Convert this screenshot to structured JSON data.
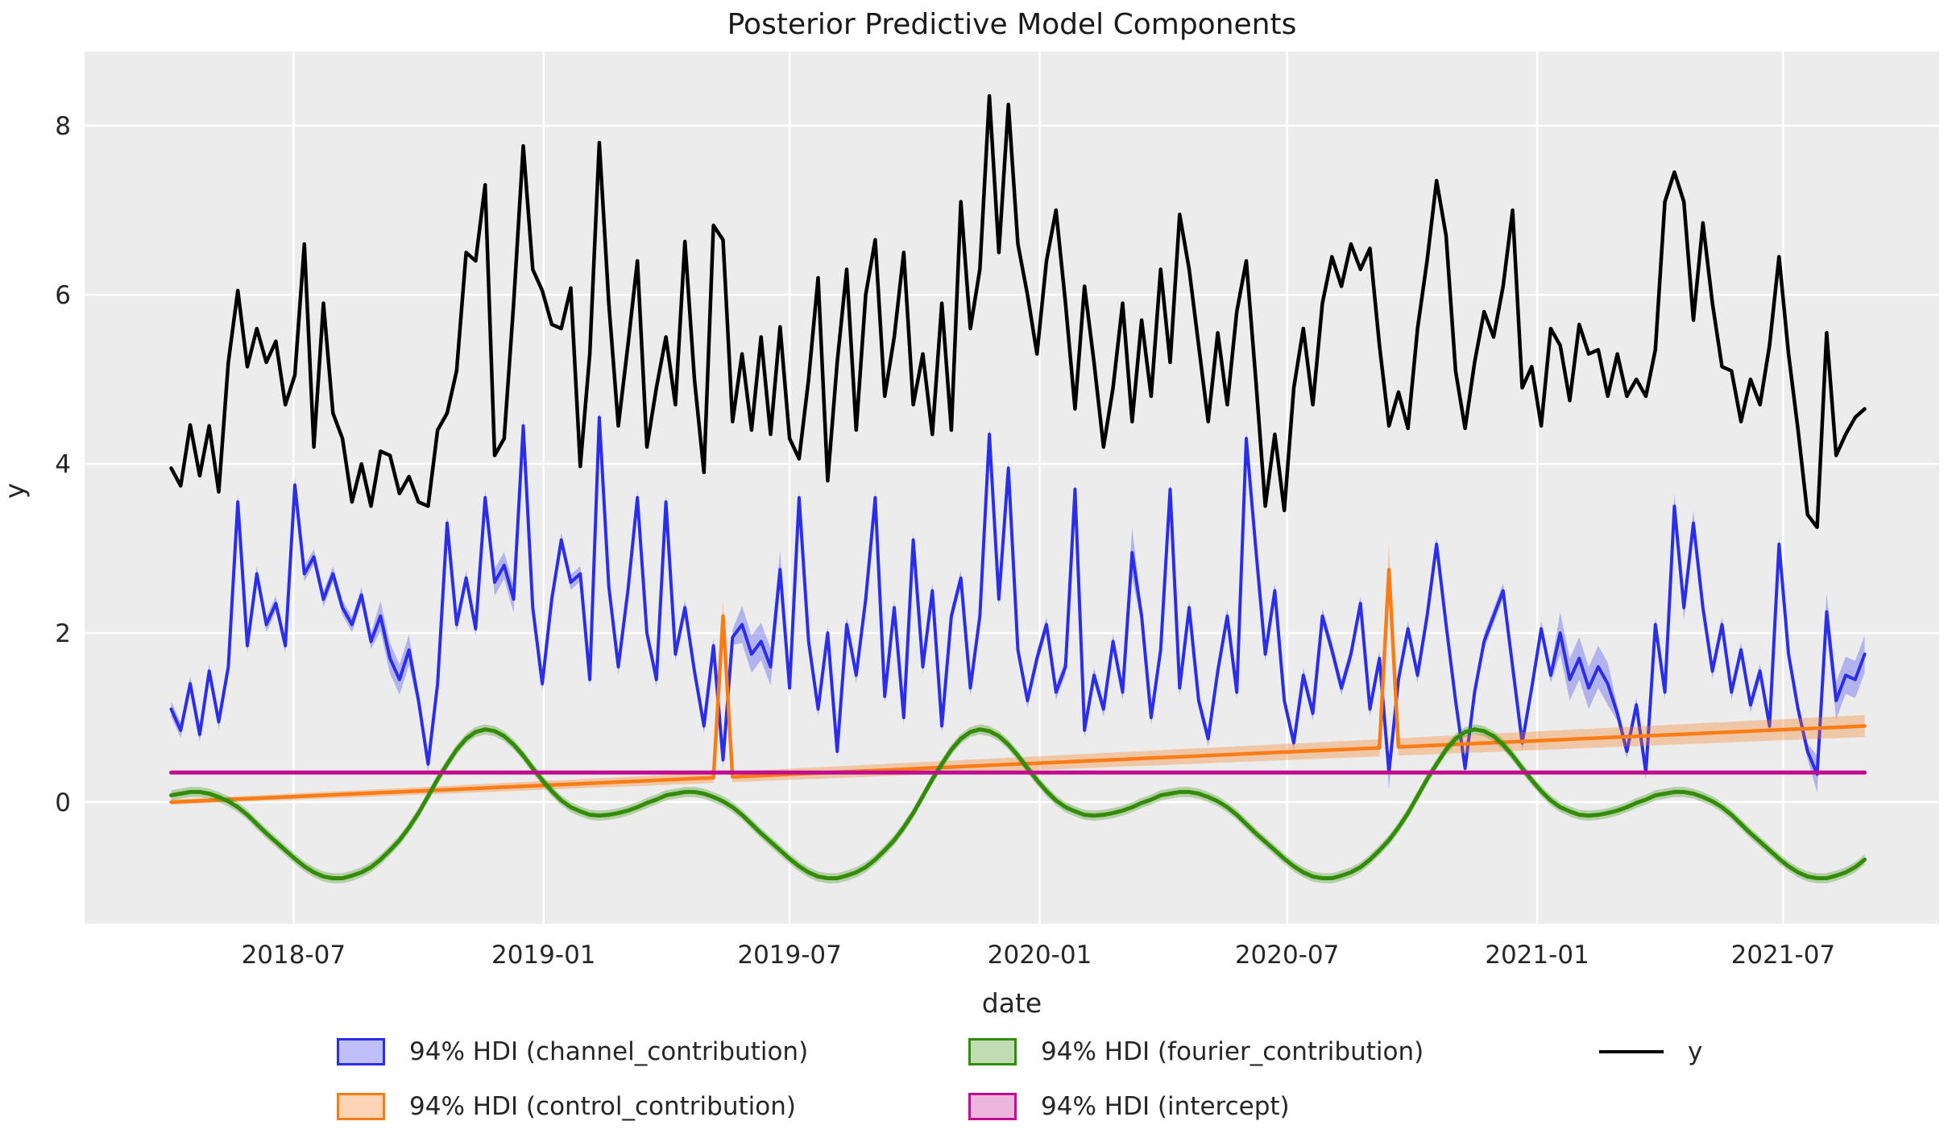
{
  "title": "Posterior Predictive Model Components",
  "axes": {
    "xlabel": "date",
    "ylabel": "y",
    "background": "#ececec",
    "gridline_color": "#ffffff",
    "text_color": "#262626",
    "y_ticks": [
      {
        "value": 0,
        "label": "0"
      },
      {
        "value": 2,
        "label": "2"
      },
      {
        "value": 4,
        "label": "4"
      },
      {
        "value": 6,
        "label": "6"
      },
      {
        "value": 8,
        "label": "8"
      }
    ],
    "x_ticks": [
      {
        "day": 90,
        "label": "2018-07"
      },
      {
        "day": 274,
        "label": "2019-01"
      },
      {
        "day": 455,
        "label": "2019-07"
      },
      {
        "day": 639,
        "label": "2020-01"
      },
      {
        "day": 821,
        "label": "2020-07"
      },
      {
        "day": 1005,
        "label": "2021-01"
      },
      {
        "day": 1186,
        "label": "2021-07"
      }
    ],
    "ylim": [
      -1.45,
      8.9
    ]
  },
  "legend": {
    "entries": [
      {
        "label": "94% HDI (channel_contribution)",
        "color": "#2a2eec",
        "fill": "rgba(42,46,236,0.3)",
        "glyph": "patch"
      },
      {
        "label": "94% HDI (control_contribution)",
        "color": "#fa7c17",
        "fill": "rgba(250,124,23,0.33)",
        "glyph": "patch"
      },
      {
        "label": "94% HDI (fourier_contribution)",
        "color": "#328c06",
        "fill": "rgba(50,140,6,0.3)",
        "glyph": "patch"
      },
      {
        "label": "94% HDI (intercept)",
        "color": "#c10c90",
        "fill": "rgba(193,12,144,0.3)",
        "glyph": "patch"
      },
      {
        "label": "y",
        "color": "#000000",
        "fill": "#000000",
        "glyph": "line"
      }
    ]
  },
  "chart_data": {
    "type": "line",
    "title": "Posterior Predictive Model Components",
    "xlabel": "date",
    "ylabel": "y",
    "hdi_probability": 0.94,
    "x_start_date": "2018-04-02",
    "x_step_days": 7,
    "n_points": 179,
    "grid": true,
    "legend_position": "bottom",
    "series": [
      {
        "name": "channel_contribution",
        "color": "#2a2eec",
        "band": "rgba(42,46,236,0.3)",
        "width": 4,
        "values": [
          1.1,
          0.85,
          1.4,
          0.8,
          1.55,
          0.95,
          1.6,
          3.55,
          1.85,
          2.7,
          2.1,
          2.35,
          1.85,
          3.75,
          2.7,
          2.9,
          2.4,
          2.7,
          2.3,
          2.1,
          2.45,
          1.9,
          2.2,
          1.7,
          1.45,
          1.8,
          1.2,
          0.45,
          1.4,
          3.3,
          2.1,
          2.65,
          2.05,
          3.6,
          2.6,
          2.8,
          2.4,
          4.45,
          2.3,
          1.4,
          2.4,
          3.1,
          2.6,
          2.7,
          1.45,
          4.55,
          2.55,
          1.6,
          2.5,
          3.6,
          2.0,
          1.45,
          3.55,
          1.75,
          2.3,
          1.55,
          0.9,
          1.85,
          0.5,
          1.95,
          2.1,
          1.75,
          1.9,
          1.6,
          2.75,
          1.35,
          3.6,
          1.9,
          1.1,
          2.0,
          0.6,
          2.1,
          1.5,
          2.4,
          3.6,
          1.25,
          2.3,
          1.0,
          3.1,
          1.6,
          2.5,
          0.9,
          2.2,
          2.65,
          1.35,
          2.2,
          4.35,
          2.4,
          3.95,
          1.8,
          1.2,
          1.7,
          2.1,
          1.3,
          1.6,
          3.7,
          0.85,
          1.5,
          1.1,
          1.9,
          1.3,
          2.95,
          2.2,
          1.0,
          1.8,
          3.7,
          1.35,
          2.3,
          1.2,
          0.75,
          1.55,
          2.2,
          1.3,
          4.3,
          3.0,
          1.75,
          2.5,
          1.2,
          0.7,
          1.5,
          1.05,
          2.2,
          1.8,
          1.35,
          1.75,
          2.35,
          1.1,
          1.7,
          0.35,
          1.45,
          2.05,
          1.5,
          2.2,
          3.05,
          2.1,
          1.2,
          0.4,
          1.3,
          1.9,
          2.2,
          2.5,
          1.6,
          0.7,
          1.35,
          2.05,
          1.5,
          2.0,
          1.45,
          1.7,
          1.35,
          1.6,
          1.4,
          1.05,
          0.6,
          1.15,
          0.35,
          2.1,
          1.3,
          3.5,
          2.3,
          3.3,
          2.3,
          1.55,
          2.1,
          1.3,
          1.8,
          1.15,
          1.55,
          0.9,
          3.05,
          1.75,
          1.1,
          0.6,
          0.33,
          2.25,
          1.2,
          1.5,
          1.45,
          1.75
        ],
        "hdi": {
          "default": 0.09,
          "overrides": [
            [
              22,
              25,
              0.18
            ],
            [
              34,
              36,
              0.16
            ],
            [
              60,
              64,
              0.22
            ],
            [
              101,
              101,
              0.3
            ],
            [
              128,
              128,
              0.2
            ],
            [
              146,
              151,
              0.25
            ],
            [
              158,
              160,
              0.15
            ],
            [
              173,
              178,
              0.22
            ]
          ]
        }
      },
      {
        "name": "control_contribution",
        "color": "#fa7c17",
        "band": "rgba(250,124,23,0.33)",
        "width": 4.5,
        "linear": {
          "start": 0.0,
          "end": 0.9
        },
        "spikes": [
          [
            58,
            2.2
          ],
          [
            128,
            2.75
          ]
        ],
        "hdi": {
          "linear": {
            "start": 0.03,
            "end": 0.13
          },
          "overrides": [
            [
              58,
              58,
              0.2
            ],
            [
              128,
              128,
              0.3
            ]
          ]
        }
      },
      {
        "name": "fourier_contribution",
        "color": "#328c06",
        "band": "rgba(50,140,6,0.3)",
        "width": 5,
        "cycle_period_weeks": 52,
        "cycle": [
          0.08,
          0.1,
          0.12,
          0.12,
          0.1,
          0.06,
          0.01,
          -0.06,
          -0.15,
          -0.26,
          -0.37,
          -0.47,
          -0.57,
          -0.67,
          -0.76,
          -0.83,
          -0.88,
          -0.9,
          -0.9,
          -0.87,
          -0.83,
          -0.77,
          -0.68,
          -0.57,
          -0.45,
          -0.3,
          -0.13,
          0.07,
          0.27,
          0.45,
          0.62,
          0.75,
          0.83,
          0.86,
          0.84,
          0.78,
          0.68,
          0.55,
          0.4,
          0.26,
          0.13,
          0.02,
          -0.06,
          -0.11,
          -0.15,
          -0.16,
          -0.15,
          -0.13,
          -0.1,
          -0.06,
          -0.01,
          0.03
        ],
        "hdi": {
          "default": 0.06
        }
      },
      {
        "name": "intercept",
        "color": "#c10c90",
        "band": "rgba(193,12,144,0.3)",
        "width": 5,
        "constant": 0.35,
        "hdi": {
          "default": 0.02
        }
      },
      {
        "name": "y",
        "color": "#000000",
        "width": 4.5,
        "values": [
          3.95,
          3.74,
          4.46,
          3.86,
          4.45,
          3.67,
          5.2,
          6.05,
          5.15,
          5.6,
          5.2,
          5.45,
          4.7,
          5.05,
          6.6,
          4.2,
          5.9,
          4.6,
          4.3,
          3.55,
          4.0,
          3.5,
          4.15,
          4.1,
          3.65,
          3.85,
          3.55,
          3.5,
          4.4,
          4.6,
          5.1,
          6.5,
          6.4,
          7.3,
          4.1,
          4.3,
          5.9,
          7.76,
          6.3,
          6.05,
          5.65,
          5.6,
          6.08,
          3.97,
          5.3,
          7.8,
          5.9,
          4.45,
          5.4,
          6.4,
          4.2,
          4.9,
          5.5,
          4.7,
          6.63,
          5.0,
          3.9,
          6.82,
          6.65,
          4.5,
          5.3,
          4.4,
          5.5,
          4.35,
          5.62,
          4.3,
          4.06,
          5.0,
          6.2,
          3.8,
          5.2,
          6.3,
          4.4,
          6.0,
          6.65,
          4.8,
          5.5,
          6.5,
          4.7,
          5.3,
          4.35,
          5.9,
          4.4,
          7.1,
          5.6,
          6.3,
          8.35,
          6.5,
          8.25,
          6.6,
          6.0,
          5.3,
          6.4,
          7.0,
          5.9,
          4.65,
          6.1,
          5.2,
          4.2,
          4.9,
          5.9,
          4.5,
          5.7,
          4.8,
          6.3,
          5.2,
          6.95,
          6.3,
          5.4,
          4.5,
          5.55,
          4.7,
          5.8,
          6.4,
          5.0,
          3.5,
          4.35,
          3.45,
          4.9,
          5.6,
          4.7,
          5.9,
          6.45,
          6.1,
          6.6,
          6.3,
          6.55,
          5.4,
          4.45,
          4.85,
          4.42,
          5.6,
          6.4,
          7.35,
          6.7,
          5.1,
          4.42,
          5.2,
          5.8,
          5.5,
          6.1,
          7.0,
          4.9,
          5.15,
          4.45,
          5.6,
          5.4,
          4.75,
          5.65,
          5.3,
          5.35,
          4.8,
          5.3,
          4.8,
          5.0,
          4.8,
          5.35,
          7.1,
          7.45,
          7.1,
          5.7,
          6.85,
          5.9,
          5.15,
          5.1,
          4.5,
          5.0,
          4.7,
          5.4,
          6.45,
          5.3,
          4.4,
          3.4,
          3.25,
          5.55,
          4.1,
          4.35,
          4.55,
          4.65
        ]
      }
    ]
  }
}
